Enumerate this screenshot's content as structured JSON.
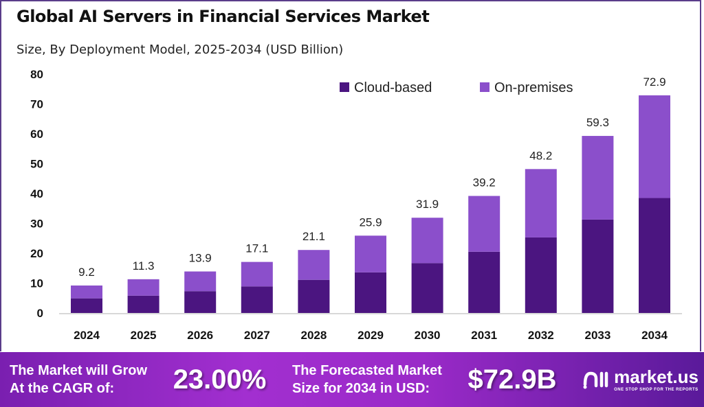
{
  "chart_data": {
    "type": "bar",
    "stacked": true,
    "title": "Global AI Servers in Financial Services Market",
    "subtitle": "Size, By Deployment Model, 2025-2034 (USD Billion)",
    "categories": [
      "2024",
      "2025",
      "2026",
      "2027",
      "2028",
      "2029",
      "2030",
      "2031",
      "2032",
      "2033",
      "2034"
    ],
    "series": [
      {
        "name": "Cloud-based",
        "color": "#4b1580",
        "values": [
          4.9,
          5.8,
          7.3,
          8.9,
          11.1,
          13.6,
          16.7,
          20.5,
          25.3,
          31.3,
          38.5
        ]
      },
      {
        "name": "On-premises",
        "color": "#8b4fcb",
        "values": [
          4.3,
          5.5,
          6.6,
          8.2,
          10.0,
          12.3,
          15.2,
          18.7,
          22.9,
          28.0,
          34.4
        ]
      }
    ],
    "totals": [
      "9.2",
      "11.3",
      "13.9",
      "17.1",
      "21.1",
      "25.9",
      "31.9",
      "39.2",
      "48.2",
      "59.3",
      "72.9"
    ],
    "yticks": [
      "0",
      "10",
      "20",
      "30",
      "40",
      "50",
      "60",
      "70",
      "80"
    ],
    "ylim": [
      0,
      80
    ],
    "grid": false,
    "legend_position": "top-right"
  },
  "banner": {
    "cagr_label_1": "The Market will Grow",
    "cagr_label_2": "At the CAGR of:",
    "cagr_value": "23.00%",
    "forecast_label_1": "The Forecasted Market",
    "forecast_label_2": "Size for 2034 in USD:",
    "forecast_value": "$72.9B",
    "logo_text": "market.us",
    "logo_tagline": "ONE STOP SHOP FOR THE REPORTS"
  }
}
